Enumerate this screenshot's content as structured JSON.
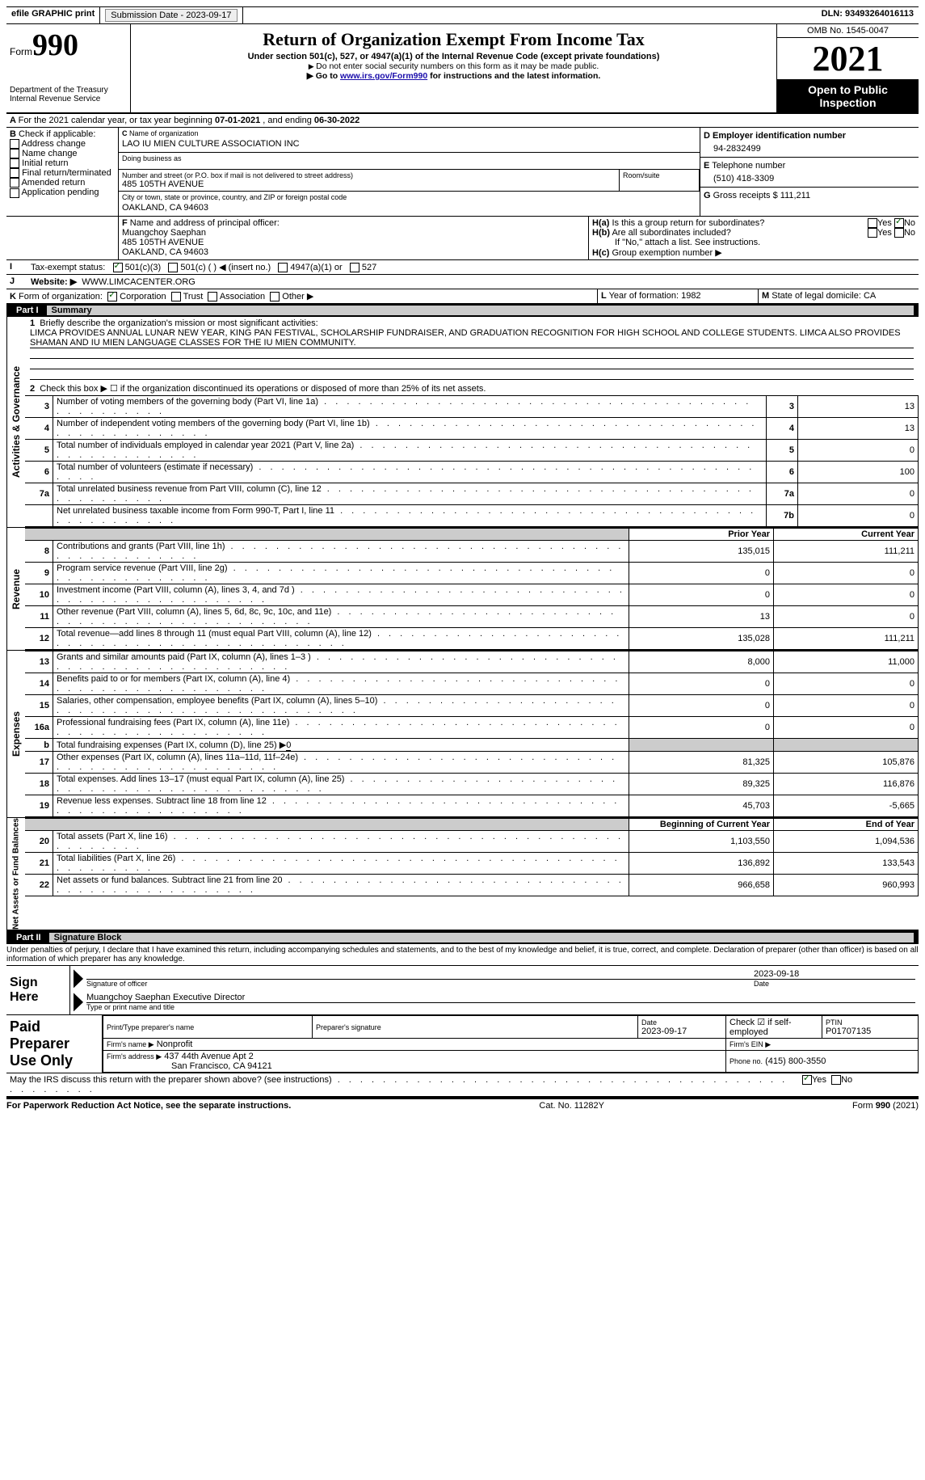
{
  "topbar": {
    "efile": "efile GRAPHIC print",
    "submission_label": "Submission Date - ",
    "submission_date": "2023-09-17",
    "dln_label": "DLN: ",
    "dln": "93493264016113"
  },
  "header": {
    "form_word": "Form",
    "form_num": "990",
    "dept": "Department of the Treasury\nInternal Revenue Service",
    "title": "Return of Organization Exempt From Income Tax",
    "sub": "Under section 501(c), 527, or 4947(a)(1) of the Internal Revenue Code (except private foundations)",
    "note1": "Do not enter social security numbers on this form as it may be made public.",
    "note2_pre": "Go to ",
    "note2_link": "www.irs.gov/Form990",
    "note2_post": " for instructions and the latest information.",
    "omb": "OMB No. 1545-0047",
    "year": "2021",
    "opento": "Open to Public Inspection"
  },
  "A": {
    "text": "For the 2021 calendar year, or tax year beginning ",
    "begin": "07-01-2021",
    "mid": " , and ending ",
    "end": "06-30-2022"
  },
  "B": {
    "label": "Check if applicable:",
    "items": [
      "Address change",
      "Name change",
      "Initial return",
      "Final return/terminated",
      "Amended return",
      "Application pending"
    ]
  },
  "C": {
    "name_lbl": "Name of organization",
    "name": "LAO IU MIEN CULTURE ASSOCIATION INC",
    "dba_lbl": "Doing business as",
    "dba": "",
    "street_lbl": "Number and street (or P.O. box if mail is not delivered to street address)",
    "room_lbl": "Room/suite",
    "street": "485 105TH AVENUE",
    "city_lbl": "City or town, state or province, country, and ZIP or foreign postal code",
    "city": "OAKLAND, CA  94603"
  },
  "D": {
    "lbl": "Employer identification number",
    "val": "94-2832499"
  },
  "E": {
    "lbl": "Telephone number",
    "val": "(510) 418-3309"
  },
  "G": {
    "lbl": "Gross receipts $",
    "val": "111,211"
  },
  "F": {
    "lbl": "Name and address of principal officer:",
    "name": "Muangchoy Saephan",
    "addr1": "485 105TH AVENUE",
    "addr2": "OAKLAND, CA  94603"
  },
  "H": {
    "a": "Is this a group return for subordinates?",
    "b": "Are all subordinates included?",
    "b_note": "If \"No,\" attach a list. See instructions.",
    "c": "Group exemption number ▶",
    "yes": "Yes",
    "no": "No"
  },
  "I": {
    "lbl": "Tax-exempt status:",
    "opts": [
      "501(c)(3)",
      "501(c) (  ) ◀ (insert no.)",
      "4947(a)(1) or",
      "527"
    ]
  },
  "J": {
    "lbl": "Website: ▶",
    "val": "WWW.LIMCACENTER.ORG"
  },
  "K": {
    "lbl": "Form of organization:",
    "opts": [
      "Corporation",
      "Trust",
      "Association",
      "Other ▶"
    ]
  },
  "L": {
    "lbl": "Year of formation:",
    "val": "1982"
  },
  "M": {
    "lbl": "State of legal domicile:",
    "val": "CA"
  },
  "part1": {
    "hdr_lbl": "Part I",
    "hdr_title": "Summary",
    "q1_lbl": "Briefly describe the organization's mission or most significant activities:",
    "q1_val": "LIMCA PROVIDES ANNUAL LUNAR NEW YEAR, KING PAN FESTIVAL, SCHOLARSHIP FUNDRAISER, AND GRADUATION RECOGNITION FOR HIGH SCHOOL AND COLLEGE STUDENTS. LIMCA ALSO PROVIDES SHAMAN AND IU MIEN LANGUAGE CLASSES FOR THE IU MIEN COMMUNITY.",
    "q2": "Check this box ▶ ☐ if the organization discontinued its operations or disposed of more than 25% of its net assets.",
    "side_gov": "Activities & Governance",
    "side_rev": "Revenue",
    "side_exp": "Expenses",
    "side_na": "Net Assets or Fund Balances",
    "rows_gov": [
      {
        "n": "3",
        "t": "Number of voting members of the governing body (Part VI, line 1a)",
        "box": "3",
        "v": "13"
      },
      {
        "n": "4",
        "t": "Number of independent voting members of the governing body (Part VI, line 1b)",
        "box": "4",
        "v": "13"
      },
      {
        "n": "5",
        "t": "Total number of individuals employed in calendar year 2021 (Part V, line 2a)",
        "box": "5",
        "v": "0"
      },
      {
        "n": "6",
        "t": "Total number of volunteers (estimate if necessary)",
        "box": "6",
        "v": "100"
      },
      {
        "n": "7a",
        "t": "Total unrelated business revenue from Part VIII, column (C), line 12",
        "box": "7a",
        "v": "0"
      },
      {
        "n": "",
        "t": "Net unrelated business taxable income from Form 990-T, Part I, line 11",
        "box": "7b",
        "v": "0"
      }
    ],
    "col_prior": "Prior Year",
    "col_current": "Current Year",
    "col_boy": "Beginning of Current Year",
    "col_eoy": "End of Year",
    "rows_rev": [
      {
        "n": "8",
        "t": "Contributions and grants (Part VIII, line 1h)",
        "p": "135,015",
        "c": "111,211"
      },
      {
        "n": "9",
        "t": "Program service revenue (Part VIII, line 2g)",
        "p": "0",
        "c": "0"
      },
      {
        "n": "10",
        "t": "Investment income (Part VIII, column (A), lines 3, 4, and 7d )",
        "p": "0",
        "c": "0"
      },
      {
        "n": "11",
        "t": "Other revenue (Part VIII, column (A), lines 5, 6d, 8c, 9c, 10c, and 11e)",
        "p": "13",
        "c": "0"
      },
      {
        "n": "12",
        "t": "Total revenue—add lines 8 through 11 (must equal Part VIII, column (A), line 12)",
        "p": "135,028",
        "c": "111,211"
      }
    ],
    "rows_exp": [
      {
        "n": "13",
        "t": "Grants and similar amounts paid (Part IX, column (A), lines 1–3 )",
        "p": "8,000",
        "c": "11,000"
      },
      {
        "n": "14",
        "t": "Benefits paid to or for members (Part IX, column (A), line 4)",
        "p": "0",
        "c": "0"
      },
      {
        "n": "15",
        "t": "Salaries, other compensation, employee benefits (Part IX, column (A), lines 5–10)",
        "p": "0",
        "c": "0"
      },
      {
        "n": "16a",
        "t": "Professional fundraising fees (Part IX, column (A), line 11e)",
        "p": "0",
        "c": "0"
      }
    ],
    "row_16b_lbl": "Total fundraising expenses (Part IX, column (D), line 25) ▶",
    "row_16b_val": "0",
    "rows_exp2": [
      {
        "n": "17",
        "t": "Other expenses (Part IX, column (A), lines 11a–11d, 11f–24e)",
        "p": "81,325",
        "c": "105,876"
      },
      {
        "n": "18",
        "t": "Total expenses. Add lines 13–17 (must equal Part IX, column (A), line 25)",
        "p": "89,325",
        "c": "116,876"
      },
      {
        "n": "19",
        "t": "Revenue less expenses. Subtract line 18 from line 12",
        "p": "45,703",
        "c": "-5,665"
      }
    ],
    "rows_na": [
      {
        "n": "20",
        "t": "Total assets (Part X, line 16)",
        "p": "1,103,550",
        "c": "1,094,536"
      },
      {
        "n": "21",
        "t": "Total liabilities (Part X, line 26)",
        "p": "136,892",
        "c": "133,543"
      },
      {
        "n": "22",
        "t": "Net assets or fund balances. Subtract line 21 from line 20",
        "p": "966,658",
        "c": "960,993"
      }
    ]
  },
  "part2": {
    "hdr_lbl": "Part II",
    "hdr_title": "Signature Block",
    "perjury": "Under penalties of perjury, I declare that I have examined this return, including accompanying schedules and statements, and to the best of my knowledge and belief, it is true, correct, and complete. Declaration of preparer (other than officer) is based on all information of which preparer has any knowledge.",
    "sign_here": "Sign Here",
    "sig_officer_lbl": "Signature of officer",
    "sig_date": "2023-09-18",
    "date_lbl": "Date",
    "officer_name": "Muangchoy Saephan  Executive Director",
    "officer_name_lbl": "Type or print name and title",
    "paid": "Paid Preparer Use Only",
    "prep_name_lbl": "Print/Type preparer's name",
    "prep_name": "",
    "prep_sig_lbl": "Preparer's signature",
    "prep_date_lbl": "Date",
    "prep_date": "2023-09-17",
    "check_self_lbl": "Check ☑ if self-employed",
    "ptin_lbl": "PTIN",
    "ptin": "P01707135",
    "firm_name_lbl": "Firm's name ▶",
    "firm_name": "Nonprofit",
    "firm_ein_lbl": "Firm's EIN ▶",
    "firm_addr_lbl": "Firm's address ▶",
    "firm_addr1": "437 44th Avenue Apt 2",
    "firm_addr2": "San Francisco, CA  94121",
    "phone_lbl": "Phone no.",
    "phone": "(415) 800-3550",
    "discuss": "May the IRS discuss this return with the preparer shown above? (see instructions)"
  },
  "footer": {
    "left": "For Paperwork Reduction Act Notice, see the separate instructions.",
    "mid": "Cat. No. 11282Y",
    "right": "Form 990 (2021)"
  },
  "colors": {
    "link": "#1a0dab",
    "black": "#000000",
    "shade": "#cccccc"
  }
}
